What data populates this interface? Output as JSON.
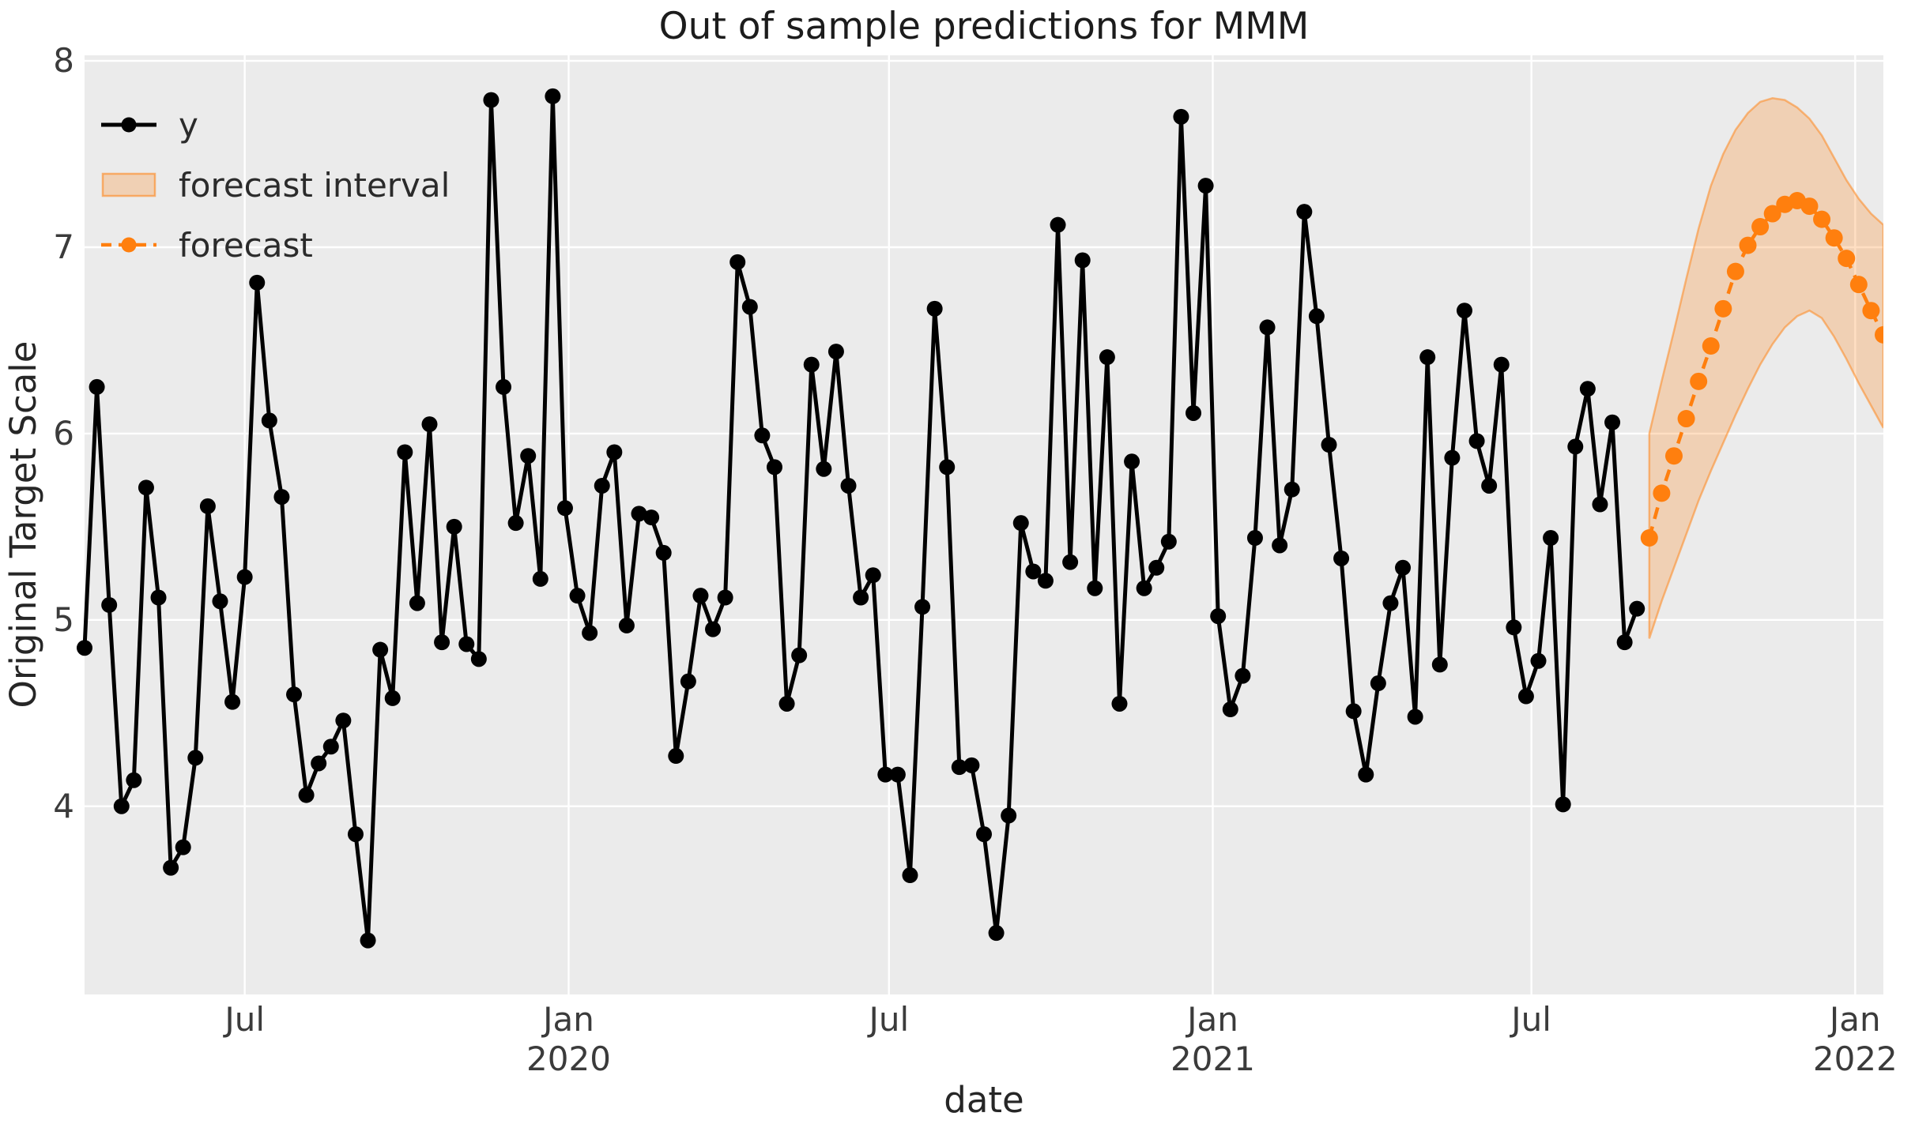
{
  "title": "Out of sample predictions for MMM",
  "axes": {
    "xlabel": "date",
    "ylabel": "Original Target Scale",
    "y_tick_labels": [
      "8",
      "7",
      "6",
      "5",
      "4"
    ],
    "x_tick_labels": [
      "Jul",
      "Jan 2020",
      "Jul",
      "Jan 2021",
      "Jul",
      "Jan 2022"
    ]
  },
  "legend": {
    "items": [
      {
        "label": "y",
        "type": "line-marker",
        "color": "#000000"
      },
      {
        "label": "forecast interval",
        "type": "patch",
        "color": "rgba(255,127,14,0.25)"
      },
      {
        "label": "forecast",
        "type": "dashed-line-marker",
        "color": "#ff7f0e"
      }
    ]
  },
  "colors": {
    "figure_bg": "#ffffff",
    "plot_bg": "#ebebeb",
    "grid": "#ffffff",
    "series_y": "#000000",
    "forecast": "#ff7f0e",
    "band_fill": "rgba(255,127,14,0.25)",
    "band_edge": "rgba(255,127,14,0.5)",
    "tick_text": "#3b3b3b",
    "title_text": "#1c1c1c"
  },
  "chart_data": {
    "type": "line",
    "title": "Out of sample predictions for MMM",
    "xlabel": "date",
    "ylabel": "Original Target Scale",
    "x_start_date": "2019-04-01",
    "x_freq": "weekly",
    "ylim": [
      2.99,
      8.03
    ],
    "x_index_max": 146,
    "grid": true,
    "legend_position": "upper left",
    "series": [
      {
        "name": "y",
        "style": "solid line, circle markers",
        "color": "#000000",
        "start_index": 0,
        "values": [
          4.85,
          6.25,
          5.08,
          4.0,
          4.14,
          5.71,
          5.12,
          3.67,
          3.78,
          4.26,
          5.61,
          5.1,
          4.56,
          5.23,
          6.81,
          6.07,
          5.66,
          4.6,
          4.06,
          4.23,
          4.32,
          4.46,
          3.85,
          3.28,
          4.84,
          4.58,
          5.9,
          5.09,
          6.05,
          4.88,
          5.5,
          4.87,
          4.79,
          7.79,
          6.25,
          5.52,
          5.88,
          5.22,
          7.81,
          5.6,
          5.13,
          4.93,
          5.72,
          5.9,
          4.97,
          5.57,
          5.55,
          5.36,
          4.27,
          4.67,
          5.13,
          4.95,
          5.12,
          6.92,
          6.68,
          5.99,
          5.82,
          4.55,
          4.81,
          6.37,
          5.81,
          6.44,
          5.72,
          5.12,
          5.24,
          4.17,
          4.17,
          3.63,
          5.07,
          6.67,
          5.82,
          4.21,
          4.22,
          3.85,
          3.32,
          3.95,
          5.52,
          5.26,
          5.21,
          7.12,
          5.31,
          6.93,
          5.17,
          6.41,
          4.55,
          5.85,
          5.17,
          5.28,
          5.42,
          7.7,
          6.11,
          7.33,
          5.02,
          4.52,
          4.7,
          5.44,
          6.57,
          5.4,
          5.7,
          7.19,
          6.63,
          5.94,
          5.33,
          4.51,
          4.17,
          4.66,
          5.09,
          5.28,
          4.48,
          6.41,
          4.76,
          5.87,
          6.66,
          5.96,
          5.72,
          6.37,
          4.96,
          4.59,
          4.78,
          5.44,
          4.01,
          5.93,
          6.24,
          5.62,
          6.06,
          4.88,
          5.06
        ]
      },
      {
        "name": "forecast",
        "style": "dashed line, circle markers",
        "color": "#ff7f0e",
        "start_index": 127,
        "values": [
          5.44,
          5.68,
          5.88,
          6.08,
          6.28,
          6.47,
          6.67,
          6.87,
          7.01,
          7.11,
          7.18,
          7.23,
          7.25,
          7.22,
          7.15,
          7.05,
          6.94,
          6.8,
          6.66,
          6.53
        ]
      }
    ],
    "band": {
      "name": "forecast interval",
      "start_index": 127,
      "upper": [
        6.0,
        6.28,
        6.55,
        6.83,
        7.1,
        7.33,
        7.5,
        7.63,
        7.72,
        7.78,
        7.8,
        7.79,
        7.75,
        7.69,
        7.6,
        7.48,
        7.36,
        7.26,
        7.18,
        7.12
      ],
      "lower": [
        4.9,
        5.1,
        5.28,
        5.46,
        5.64,
        5.8,
        5.95,
        6.1,
        6.24,
        6.37,
        6.48,
        6.57,
        6.63,
        6.66,
        6.62,
        6.52,
        6.4,
        6.27,
        6.15,
        6.03
      ]
    },
    "x_ticks": [
      {
        "label": "Jul",
        "year": "",
        "index": 13.0
      },
      {
        "label": "Jan",
        "year": "2020",
        "index": 39.29
      },
      {
        "label": "Jul",
        "year": "",
        "index": 65.29
      },
      {
        "label": "Jan",
        "year": "2021",
        "index": 91.57
      },
      {
        "label": "Jul",
        "year": "",
        "index": 117.43
      },
      {
        "label": "Jan",
        "year": "2022",
        "index": 143.71
      }
    ],
    "y_ticks": [
      8,
      7,
      6,
      5,
      4
    ]
  }
}
